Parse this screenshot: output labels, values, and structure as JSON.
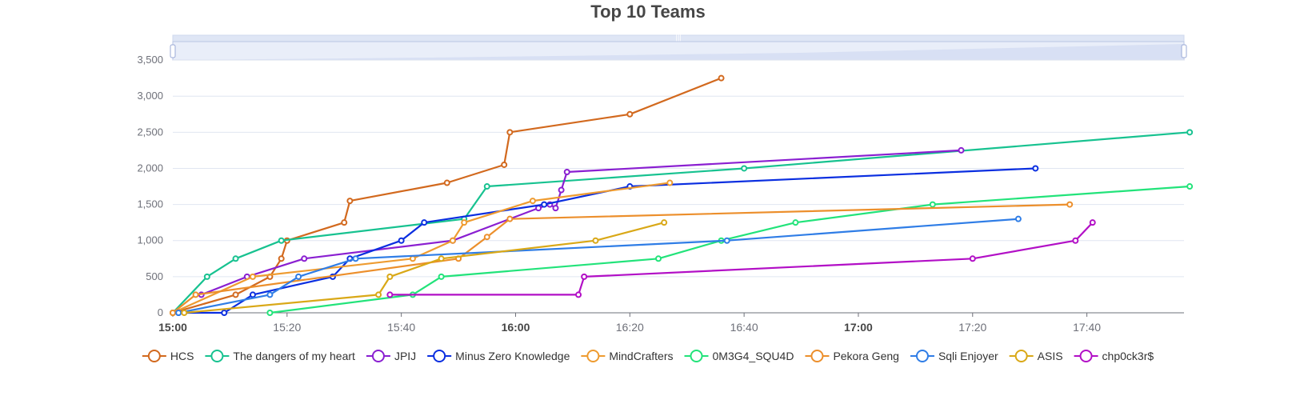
{
  "chart_data": {
    "type": "line",
    "title": "Top 10 Teams",
    "xlabel": "",
    "ylabel": "",
    "x_unit": "minutes after 15:00",
    "xlim": [
      0,
      177
    ],
    "ylim": [
      0,
      3800
    ],
    "grid": true,
    "legend_position": "bottom",
    "has_data_zoom_slider": true,
    "y_ticks": [
      {
        "value": 0,
        "label": "0"
      },
      {
        "value": 500,
        "label": "500"
      },
      {
        "value": 1000,
        "label": "1,000"
      },
      {
        "value": 1500,
        "label": "1,500"
      },
      {
        "value": 2000,
        "label": "2,000"
      },
      {
        "value": 2500,
        "label": "2,500"
      },
      {
        "value": 3000,
        "label": "3,000"
      },
      {
        "value": 3500,
        "label": "3,500"
      }
    ],
    "x_ticks": [
      {
        "value": 0,
        "label": "15:00",
        "bold": true
      },
      {
        "value": 20,
        "label": "15:20",
        "bold": false
      },
      {
        "value": 40,
        "label": "15:40",
        "bold": false
      },
      {
        "value": 60,
        "label": "16:00",
        "bold": true
      },
      {
        "value": 80,
        "label": "16:20",
        "bold": false
      },
      {
        "value": 100,
        "label": "16:40",
        "bold": false
      },
      {
        "value": 120,
        "label": "17:00",
        "bold": true
      },
      {
        "value": 140,
        "label": "17:20",
        "bold": false
      },
      {
        "value": 160,
        "label": "17:40",
        "bold": false
      }
    ],
    "series": [
      {
        "name": "HCS",
        "color": "#d2691e",
        "points": [
          [
            0,
            0
          ],
          [
            11,
            250
          ],
          [
            17,
            500
          ],
          [
            19,
            750
          ],
          [
            20,
            1000
          ],
          [
            30,
            1250
          ],
          [
            31,
            1550
          ],
          [
            48,
            1800
          ],
          [
            58,
            2050
          ],
          [
            59,
            2500
          ],
          [
            80,
            2750
          ],
          [
            96,
            3250
          ]
        ]
      },
      {
        "name": "The dangers of my heart",
        "color": "#17c290",
        "points": [
          [
            0,
            0
          ],
          [
            6,
            500
          ],
          [
            11,
            750
          ],
          [
            19,
            1000
          ],
          [
            51,
            1300
          ],
          [
            55,
            1750
          ],
          [
            100,
            2000
          ],
          [
            178,
            2500
          ]
        ]
      },
      {
        "name": "JPIJ",
        "color": "#8a1fd1",
        "points": [
          [
            5,
            250
          ],
          [
            13,
            500
          ],
          [
            23,
            750
          ],
          [
            49,
            1000
          ],
          [
            64,
            1450
          ],
          [
            66,
            1500
          ],
          [
            67,
            1450
          ],
          [
            68,
            1700
          ],
          [
            69,
            1950
          ],
          [
            138,
            2250
          ]
        ]
      },
      {
        "name": "Minus Zero Knowledge",
        "color": "#0a2ee0",
        "points": [
          [
            1,
            0
          ],
          [
            9,
            0
          ],
          [
            14,
            250
          ],
          [
            28,
            500
          ],
          [
            31,
            750
          ],
          [
            40,
            1000
          ],
          [
            44,
            1250
          ],
          [
            65,
            1500
          ],
          [
            80,
            1750
          ],
          [
            151,
            2000
          ]
        ]
      },
      {
        "name": "MindCrafters",
        "color": "#ee9b30",
        "points": [
          [
            0,
            0
          ],
          [
            14,
            500
          ],
          [
            42,
            750
          ],
          [
            49,
            1000
          ],
          [
            51,
            1250
          ],
          [
            63,
            1550
          ],
          [
            87,
            1800
          ]
        ]
      },
      {
        "name": "0M3G4_SQU4D",
        "color": "#22e37a",
        "points": [
          [
            17,
            0
          ],
          [
            42,
            250
          ],
          [
            47,
            500
          ],
          [
            85,
            750
          ],
          [
            96,
            1000
          ],
          [
            109,
            1250
          ],
          [
            133,
            1500
          ],
          [
            178,
            1750
          ]
        ]
      },
      {
        "name": "Pekora Geng",
        "color": "#ec8f2c",
        "points": [
          [
            0,
            0
          ],
          [
            4,
            250
          ],
          [
            50,
            750
          ],
          [
            55,
            1050
          ],
          [
            59,
            1300
          ],
          [
            157,
            1500
          ]
        ]
      },
      {
        "name": "Sqli Enjoyer",
        "color": "#2f7de6",
        "points": [
          [
            1,
            0
          ],
          [
            17,
            250
          ],
          [
            22,
            500
          ],
          [
            32,
            750
          ],
          [
            97,
            1000
          ],
          [
            148,
            1300
          ]
        ]
      },
      {
        "name": "ASIS",
        "color": "#d9a817",
        "points": [
          [
            2,
            0
          ],
          [
            36,
            250
          ],
          [
            38,
            500
          ],
          [
            47,
            750
          ],
          [
            74,
            1000
          ],
          [
            86,
            1250
          ]
        ]
      },
      {
        "name": "chp0ck3r$",
        "color": "#b20fc6",
        "points": [
          [
            38,
            250
          ],
          [
            71,
            250
          ],
          [
            72,
            500
          ],
          [
            140,
            750
          ],
          [
            158,
            1000
          ],
          [
            161,
            1250
          ]
        ]
      }
    ]
  }
}
